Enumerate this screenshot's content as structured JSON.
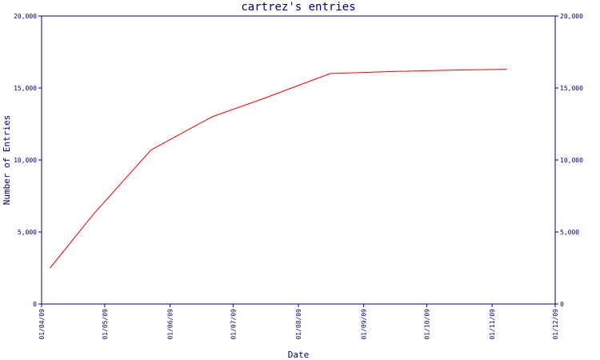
{
  "colors": {
    "axis": "#000080",
    "line": "#ff0000",
    "background": "#ffffff"
  },
  "chart_data": {
    "type": "line",
    "title": "cartrez's entries",
    "xlabel": "Date",
    "ylabel": "Number of Entries",
    "ylim": [
      0,
      20000
    ],
    "yticks": [
      0,
      5000,
      10000,
      15000,
      20000
    ],
    "ytick_labels": [
      "0",
      "5,000",
      "10,000",
      "15,000",
      "20,000"
    ],
    "xlim": [
      "2009-04-01",
      "2009-12-01"
    ],
    "xticks": [
      "2009-04-01",
      "2009-05-01",
      "2009-06-01",
      "2009-07-01",
      "2009-08-01",
      "2009-09-01",
      "2009-10-01",
      "2009-11-01",
      "2009-12-01"
    ],
    "xtick_labels": [
      "01/04/09",
      "01/05/09",
      "01/06/09",
      "01/07/09",
      "01/08/09",
      "01/09/09",
      "01/10/09",
      "01/11/09",
      "01/12/09"
    ],
    "grid": false,
    "series": [
      {
        "x": [
          "2009-04-05",
          "2009-04-26",
          "2009-05-23",
          "2009-06-21",
          "2009-07-16",
          "2009-08-16",
          "2009-09-16",
          "2009-10-16",
          "2009-11-08"
        ],
        "values": [
          2500,
          6300,
          10700,
          13000,
          14300,
          16000,
          16150,
          16250,
          16300
        ]
      }
    ]
  }
}
